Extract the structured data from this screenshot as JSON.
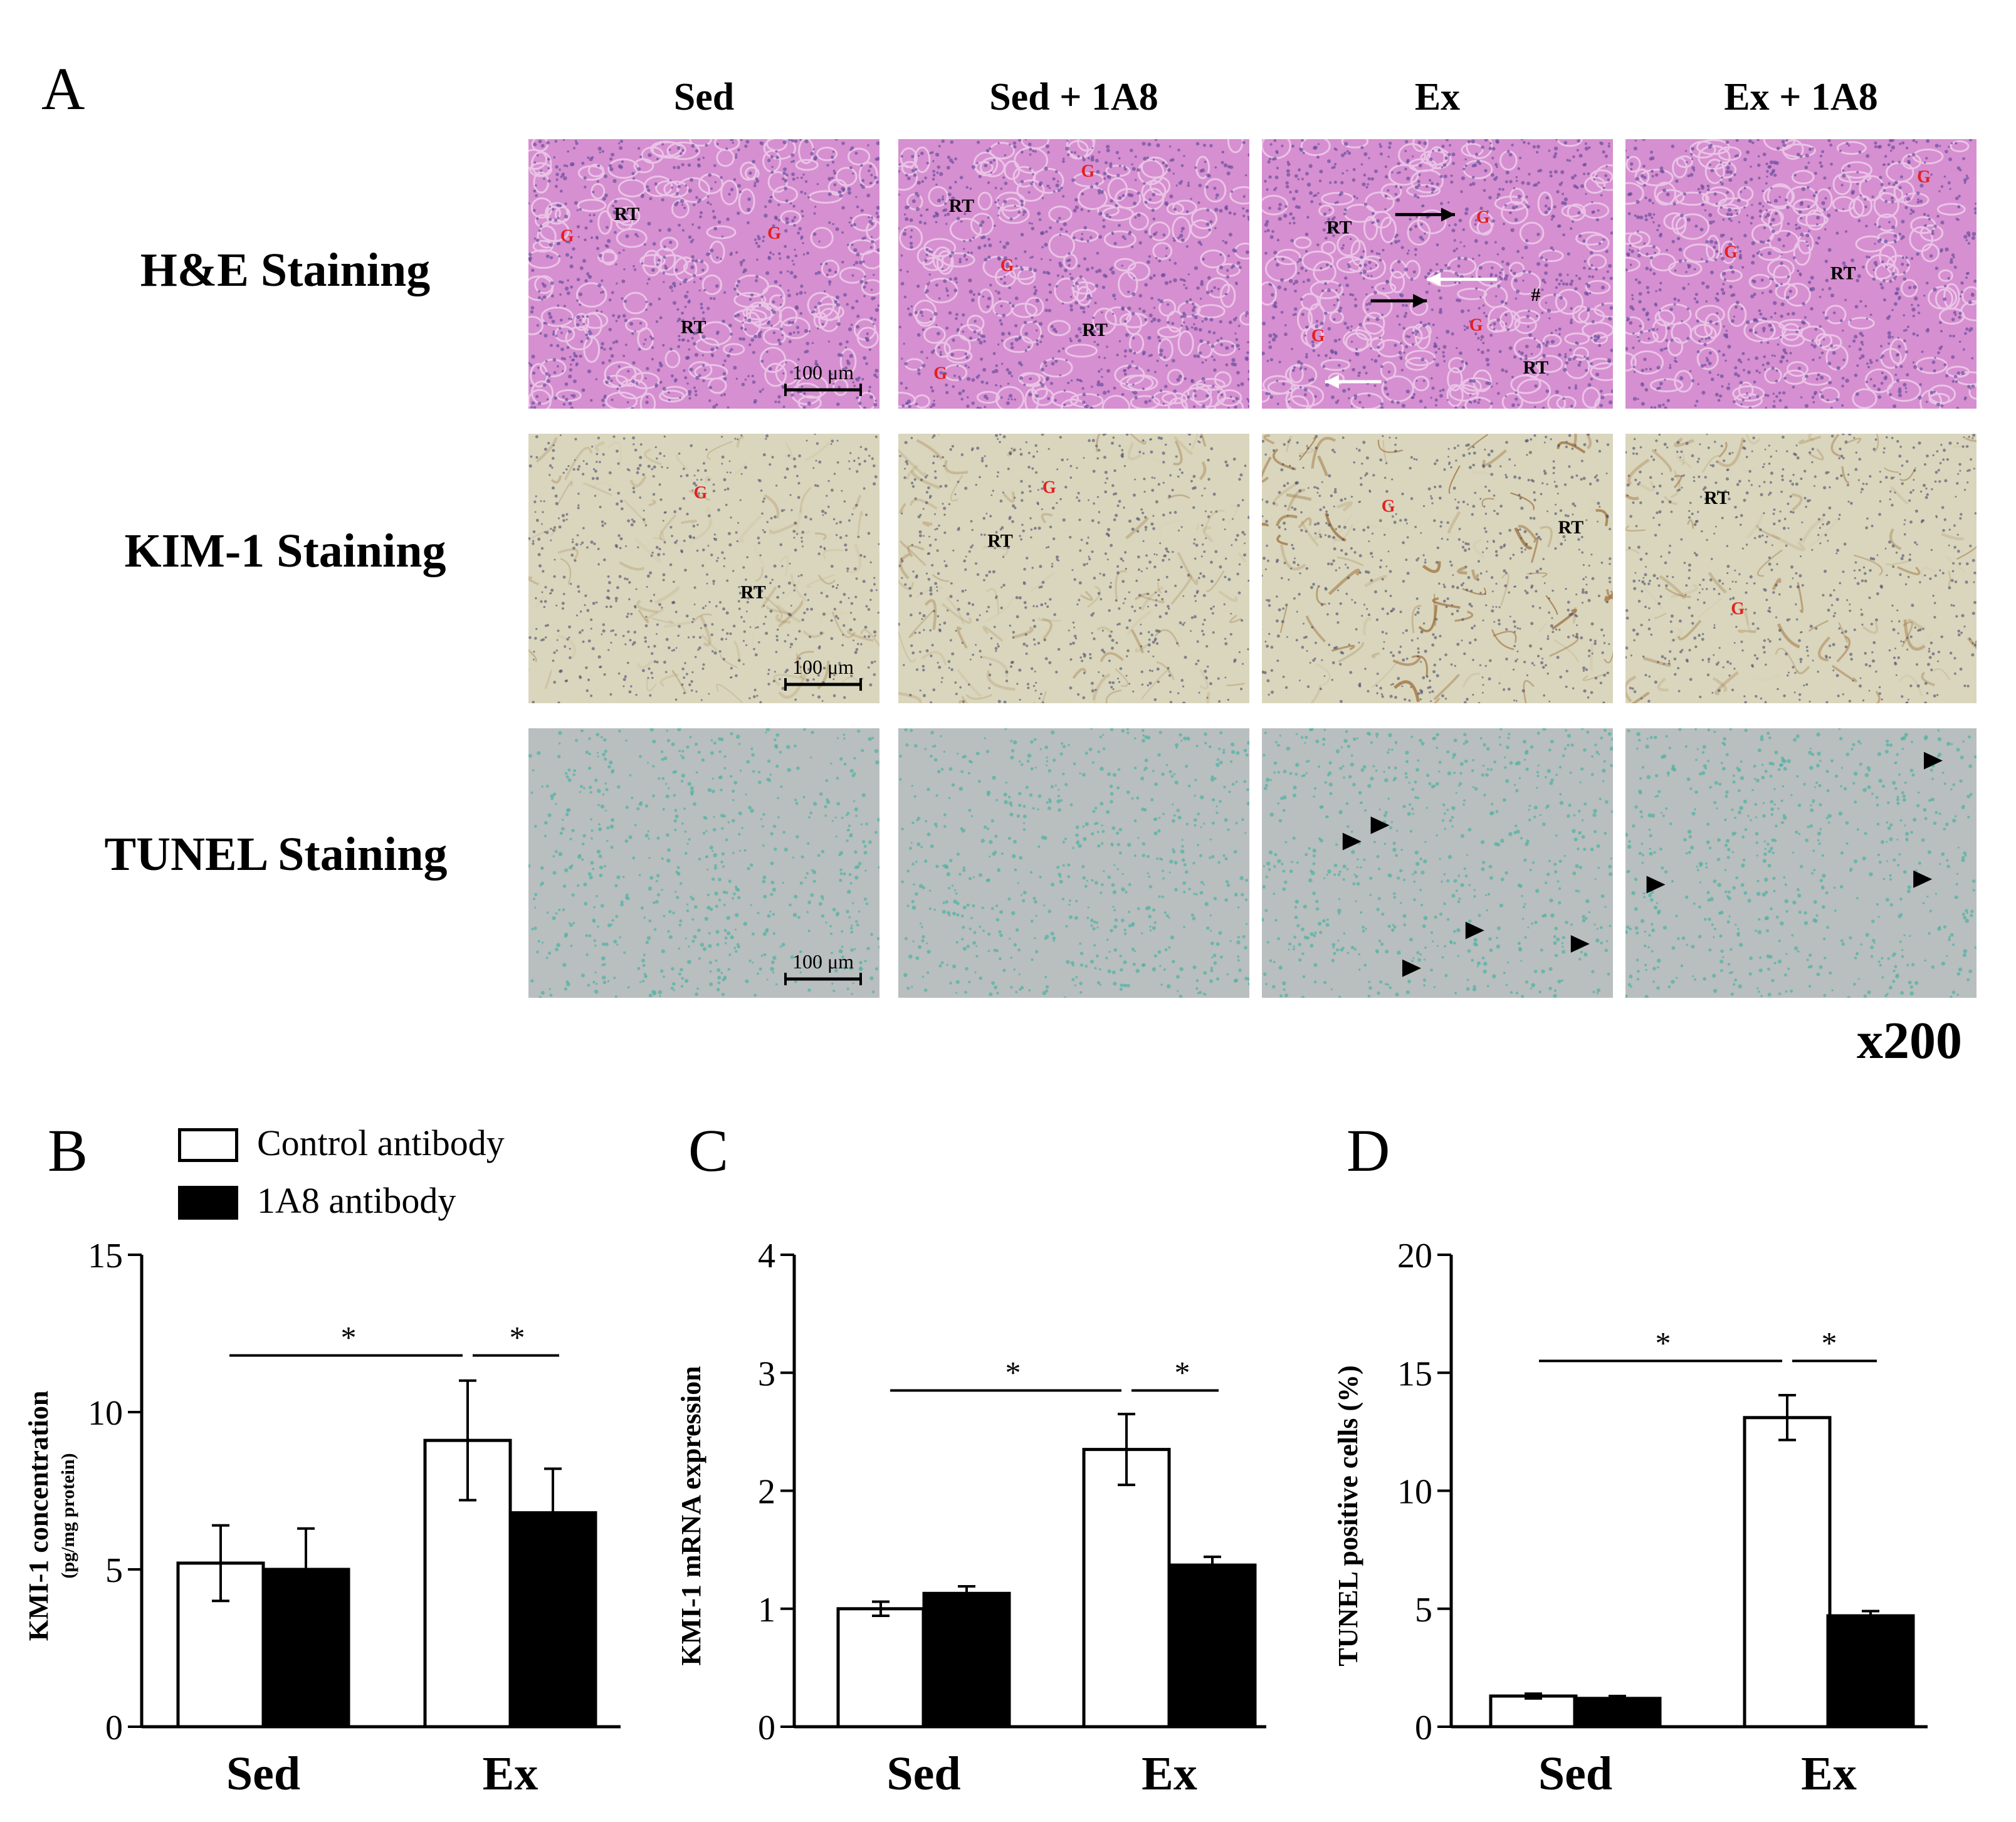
{
  "panel_letters": {
    "A": "A",
    "B": "B",
    "C": "C",
    "D": "D"
  },
  "micrographs": {
    "columns": [
      "Sed",
      "Sed + 1A8",
      "Ex",
      "Ex + 1A8"
    ],
    "rows": [
      "H&E Staining",
      "KIM-1 Staining",
      "TUNEL Staining"
    ],
    "scale_bar_label": "100 μm",
    "magnification": "x200",
    "labels": {
      "glomerulus": "G",
      "renal_tubule": "RT",
      "hash": "#"
    },
    "colors": {
      "he_base": "#d68fd0",
      "he_nuclei": "#6a4e9e",
      "kim_base": "#d9d6bd",
      "kim_stain": "#a0713e",
      "tunel_base": "#b9bebf",
      "tunel_nuclei": "#52b3a4",
      "label_red": "#e32020"
    }
  },
  "legend": {
    "items": [
      {
        "label": "Control antibody",
        "fill": "#ffffff"
      },
      {
        "label": "1A8 antibody",
        "fill": "#000000"
      }
    ]
  },
  "chart_data": [
    {
      "type": "bar",
      "panel": "B",
      "categories": [
        "Sed",
        "Ex"
      ],
      "ylabel": "KMI-1 concentration",
      "ylabel_sub": "(pg/mg protein)",
      "ylim": [
        0,
        15
      ],
      "yticks": [
        0,
        5,
        10,
        15
      ],
      "series": [
        {
          "name": "Control antibody",
          "values": [
            5.2,
            9.1
          ],
          "errors": [
            1.2,
            1.9
          ],
          "fill": "#ffffff"
        },
        {
          "name": "1A8 antibody",
          "values": [
            5.0,
            6.8
          ],
          "errors": [
            1.3,
            1.4
          ],
          "fill": "#000000"
        }
      ],
      "significance": [
        {
          "from": "Sed-center",
          "to": "Ex-control",
          "y": 11.8,
          "label": "*"
        },
        {
          "from": "Ex-control",
          "to": "Ex-1A8",
          "y": 11.8,
          "label": "*"
        }
      ]
    },
    {
      "type": "bar",
      "panel": "C",
      "categories": [
        "Sed",
        "Ex"
      ],
      "ylabel": "KMI-1 mRNA expression",
      "ylim": [
        0,
        4
      ],
      "yticks": [
        0,
        1,
        2,
        3,
        4
      ],
      "series": [
        {
          "name": "Control antibody",
          "values": [
            1.0,
            2.35
          ],
          "errors": [
            0.06,
            0.3
          ],
          "fill": "#ffffff"
        },
        {
          "name": "1A8 antibody",
          "values": [
            1.13,
            1.37
          ],
          "errors": [
            0.06,
            0.07
          ],
          "fill": "#000000"
        }
      ],
      "significance": [
        {
          "from": "Sed-center",
          "to": "Ex-control",
          "y": 2.85,
          "label": "*"
        },
        {
          "from": "Ex-control",
          "to": "Ex-1A8",
          "y": 2.85,
          "label": "*"
        }
      ]
    },
    {
      "type": "bar",
      "panel": "D",
      "categories": [
        "Sed",
        "Ex"
      ],
      "ylabel": "TUNEL positive cells (%)",
      "ylim": [
        0,
        20
      ],
      "yticks": [
        0,
        5,
        10,
        15,
        20
      ],
      "series": [
        {
          "name": "Control antibody",
          "values": [
            1.3,
            13.1
          ],
          "errors": [
            0.1,
            0.95
          ],
          "fill": "#ffffff"
        },
        {
          "name": "1A8 antibody",
          "values": [
            1.2,
            4.7
          ],
          "errors": [
            0.1,
            0.2
          ],
          "fill": "#000000"
        }
      ],
      "significance": [
        {
          "from": "Sed-center",
          "to": "Ex-control",
          "y": 15.5,
          "label": "*"
        },
        {
          "from": "Ex-control",
          "to": "Ex-1A8",
          "y": 15.5,
          "label": "*"
        }
      ]
    }
  ]
}
